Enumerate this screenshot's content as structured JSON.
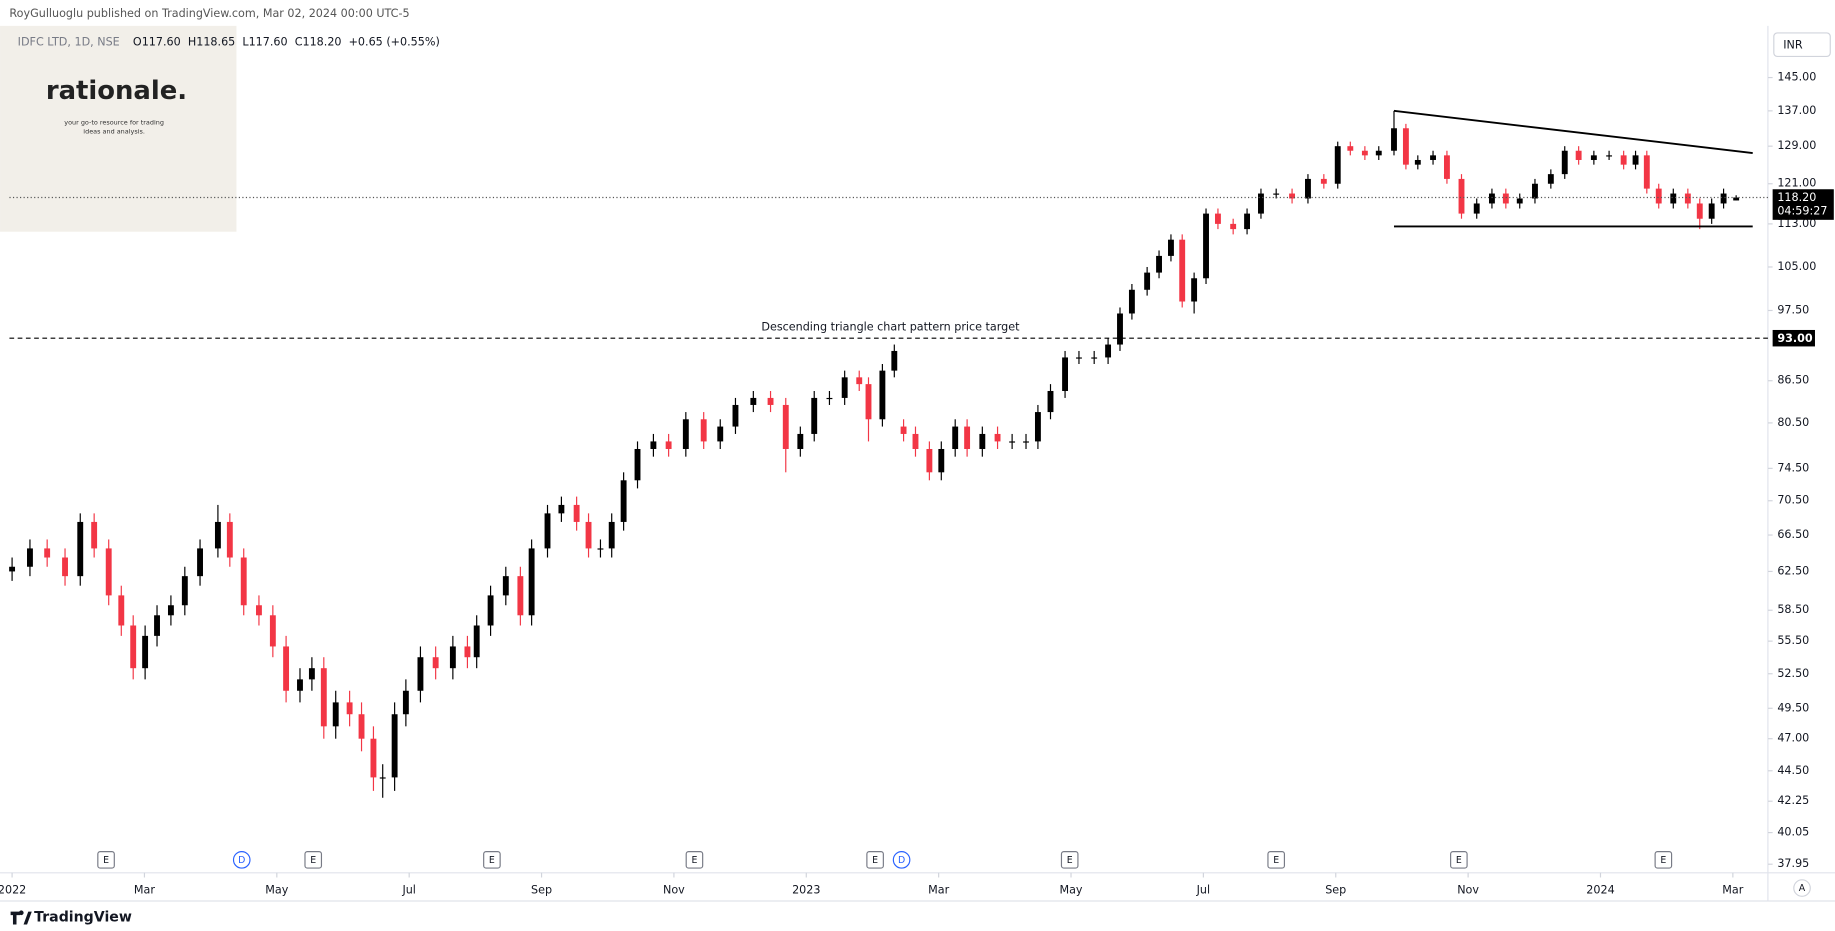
{
  "header": {
    "published": "RoyGulluoglu published on TradingView.com, Mar 02, 2024 00:00 UTC-5",
    "symbol": "IDFC LTD, 1D, NSE",
    "ohlc": [
      "O117.60",
      "H118.65",
      "L117.60",
      "C118.20",
      "+0.65 (+0.55%)"
    ]
  },
  "logo": {
    "name": "rationale.",
    "tagline": [
      "your go-to resource for trading",
      "ideas and analysis."
    ]
  },
  "footer": {
    "brand": "TradingView"
  },
  "currency": "INR",
  "scale_mode": "A",
  "chart_data": {
    "type": "candlestick",
    "log_scale": true,
    "grid": false,
    "up_color": "#000000",
    "down_color": "#f23645",
    "xlim": [
      -0.04,
      26.53
    ],
    "ylim": [
      37.4,
      157.4
    ],
    "xticks": [
      {
        "value": 0,
        "label": "2022"
      },
      {
        "value": 2,
        "label": "Mar"
      },
      {
        "value": 4,
        "label": "May"
      },
      {
        "value": 6,
        "label": "Jul"
      },
      {
        "value": 8,
        "label": "Sep"
      },
      {
        "value": 10,
        "label": "Nov"
      },
      {
        "value": 12,
        "label": "2023"
      },
      {
        "value": 14,
        "label": "Mar"
      },
      {
        "value": 16,
        "label": "May"
      },
      {
        "value": 18,
        "label": "Jul"
      },
      {
        "value": 20,
        "label": "Sep"
      },
      {
        "value": 22,
        "label": "Nov"
      },
      {
        "value": 24,
        "label": "2024"
      },
      {
        "value": 26,
        "label": "Mar"
      }
    ],
    "yticks": [
      {
        "value": 145,
        "label": "145.00"
      },
      {
        "value": 137,
        "label": "137.00"
      },
      {
        "value": 129,
        "label": "129.00"
      },
      {
        "value": 121,
        "label": "121.00"
      },
      {
        "value": 113,
        "label": "113.00"
      },
      {
        "value": 105,
        "label": "105.00"
      },
      {
        "value": 97.5,
        "label": "97.50"
      },
      {
        "value": 86.5,
        "label": "86.50"
      },
      {
        "value": 80.5,
        "label": "80.50"
      },
      {
        "value": 74.5,
        "label": "74.50"
      },
      {
        "value": 70.5,
        "label": "70.50"
      },
      {
        "value": 66.5,
        "label": "66.50"
      },
      {
        "value": 62.5,
        "label": "62.50"
      },
      {
        "value": 58.5,
        "label": "58.50"
      },
      {
        "value": 55.5,
        "label": "55.50"
      },
      {
        "value": 52.5,
        "label": "52.50"
      },
      {
        "value": 49.5,
        "label": "49.50"
      },
      {
        "value": 47,
        "label": "47.00"
      },
      {
        "value": 44.5,
        "label": "44.50"
      },
      {
        "value": 42.25,
        "label": "42.25"
      },
      {
        "value": 40.05,
        "label": "40.05"
      },
      {
        "value": 37.95,
        "label": "37.95"
      }
    ],
    "x": [
      0,
      0.27,
      0.53,
      0.8,
      1.03,
      1.24,
      1.46,
      1.65,
      1.83,
      2.01,
      2.19,
      2.4,
      2.61,
      2.84,
      3.11,
      3.29,
      3.5,
      3.73,
      3.94,
      4.14,
      4.35,
      4.53,
      4.71,
      4.89,
      5.1,
      5.28,
      5.46,
      5.6,
      5.78,
      5.95,
      6.17,
      6.4,
      6.66,
      6.88,
      7.02,
      7.23,
      7.46,
      7.68,
      7.85,
      8.09,
      8.3,
      8.53,
      8.71,
      8.89,
      9.06,
      9.24,
      9.45,
      9.69,
      9.92,
      10.18,
      10.45,
      10.7,
      10.93,
      11.2,
      11.46,
      11.69,
      11.91,
      12.12,
      12.35,
      12.58,
      12.8,
      12.94,
      13.15,
      13.33,
      13.47,
      13.65,
      13.86,
      14.04,
      14.25,
      14.43,
      14.66,
      14.89,
      15.11,
      15.32,
      15.5,
      15.69,
      15.91,
      16.12,
      16.35,
      16.56,
      16.74,
      16.92,
      17.15,
      17.33,
      17.51,
      17.68,
      17.86,
      18.04,
      18.22,
      18.45,
      18.66,
      18.87,
      19.1,
      19.34,
      19.58,
      19.82,
      20.03,
      20.22,
      20.44,
      20.65,
      20.88,
      21.06,
      21.24,
      21.47,
      21.68,
      21.9,
      22.13,
      22.36,
      22.57,
      22.78,
      23.01,
      23.25,
      23.46,
      23.67,
      23.9,
      24.13,
      24.35,
      24.53,
      24.7,
      24.88,
      25.1,
      25.32,
      25.5,
      25.68,
      25.86,
      26.05
    ],
    "open": [
      62.5,
      63,
      65,
      64,
      62,
      68,
      65,
      60,
      57,
      53,
      56,
      58,
      59,
      62,
      65,
      68,
      64,
      59,
      58,
      55,
      51,
      52,
      53,
      48,
      50,
      49,
      47,
      44,
      44,
      49,
      51,
      54,
      53,
      55,
      54,
      57,
      60,
      62,
      58,
      65,
      69,
      70,
      68,
      65,
      65,
      68,
      73,
      77,
      78,
      77,
      81,
      78,
      80,
      83,
      84,
      83,
      77,
      79,
      84,
      84,
      87,
      86,
      81,
      88,
      80,
      79,
      77,
      74,
      77,
      80,
      77,
      79,
      78,
      78,
      78,
      82,
      85,
      90,
      90,
      90,
      92,
      97,
      101,
      104,
      107,
      110,
      99,
      103,
      115,
      113,
      112,
      115,
      119,
      119,
      118,
      122,
      121,
      129,
      128,
      127,
      128,
      133,
      125,
      126,
      127,
      122,
      115,
      117,
      119,
      117,
      118,
      121,
      123,
      128,
      126,
      127,
      127,
      125,
      127,
      120,
      117,
      119,
      117,
      114,
      117,
      117.6
    ],
    "high": [
      64,
      66,
      66,
      65,
      69,
      69,
      66,
      61,
      58,
      57,
      59,
      60,
      63,
      66,
      70,
      69,
      65,
      60,
      59,
      56,
      53,
      54,
      54,
      51,
      51,
      50,
      48,
      45,
      50,
      52,
      55,
      55,
      56,
      56,
      58,
      61,
      63,
      63,
      66,
      70,
      71,
      71,
      69,
      66,
      69,
      74,
      78,
      79,
      79,
      82,
      82,
      81,
      84,
      85,
      85,
      84,
      80,
      85,
      85,
      88,
      88,
      87,
      89,
      92,
      81,
      80,
      78,
      78,
      81,
      81,
      80,
      80,
      79,
      79,
      83,
      86,
      91,
      91,
      91,
      93,
      98,
      102,
      105,
      108,
      111,
      111,
      104,
      116,
      116,
      114,
      116,
      120,
      120,
      120,
      123,
      123,
      130,
      130,
      129,
      129,
      137,
      134,
      127,
      128,
      128,
      123,
      118,
      120,
      120,
      119,
      122,
      124,
      129,
      129,
      128,
      128,
      128,
      128,
      128,
      121,
      120,
      120,
      118,
      118,
      120,
      118.65
    ],
    "low": [
      61.5,
      62,
      63,
      61,
      61,
      64,
      59,
      56,
      52,
      52,
      55,
      57,
      58,
      61,
      64,
      63,
      58,
      57,
      54,
      50,
      50,
      51,
      47,
      47,
      48,
      46,
      43,
      42.5,
      43,
      48,
      50,
      52,
      52,
      53,
      53,
      56,
      59,
      57,
      57,
      64,
      68,
      67,
      64,
      64,
      64,
      67,
      72,
      76,
      76,
      76,
      77,
      77,
      79,
      82,
      82,
      74,
      76,
      78,
      83,
      83,
      85,
      78,
      80,
      87,
      78,
      76,
      73,
      73,
      76,
      76,
      76,
      77,
      77,
      77,
      77,
      81,
      84,
      89,
      89,
      89,
      91,
      96,
      100,
      103,
      106,
      98,
      97,
      102,
      112,
      111,
      111,
      114,
      118,
      117,
      117,
      120,
      120,
      127,
      126,
      126,
      127,
      124,
      124,
      125,
      121,
      114,
      114,
      116,
      116,
      116,
      117,
      120,
      122,
      125,
      125,
      126,
      124,
      124,
      119,
      116,
      116,
      116,
      112,
      113,
      116,
      117.6
    ],
    "close": [
      63,
      65,
      64,
      62,
      68,
      65,
      60,
      57,
      53,
      56,
      58,
      59,
      62,
      65,
      68,
      64,
      59,
      58,
      55,
      51,
      52,
      53,
      48,
      50,
      49,
      47,
      44,
      44,
      49,
      51,
      54,
      53,
      55,
      54,
      57,
      60,
      62,
      58,
      65,
      69,
      70,
      68,
      65,
      65,
      68,
      73,
      77,
      78,
      77,
      81,
      78,
      80,
      83,
      84,
      83,
      77,
      79,
      84,
      84,
      87,
      86,
      81,
      88,
      91,
      79,
      77,
      74,
      77,
      80,
      77,
      79,
      78,
      78,
      78,
      82,
      85,
      90,
      90,
      90,
      92,
      97,
      101,
      104,
      107,
      110,
      99,
      103,
      115,
      113,
      112,
      115,
      119,
      119,
      118,
      122,
      121,
      129,
      128,
      127,
      128,
      133,
      125,
      126,
      127,
      122,
      115,
      117,
      119,
      117,
      118,
      121,
      123,
      128,
      126,
      127,
      127,
      125,
      127,
      120,
      117,
      119,
      117,
      114,
      117,
      119,
      118.2
    ],
    "last_price": {
      "value": 118.2,
      "label": "118.20",
      "countdown": "04:59:27"
    },
    "target": {
      "value": 93,
      "label": "93.00",
      "text": "Descending triangle chart pattern price target"
    },
    "trendlines": [
      {
        "x": [
          20.88,
          26.3
        ],
        "y": [
          137,
          127.5
        ]
      },
      {
        "x": [
          20.88,
          26.3
        ],
        "y": [
          112.5,
          112.5
        ]
      }
    ],
    "events": {
      "labels": [
        "E",
        "D",
        "E",
        "E",
        "E",
        "E",
        "D",
        "E",
        "E",
        "E",
        "E"
      ],
      "x": [
        1.42,
        3.47,
        4.55,
        7.25,
        10.31,
        13.04,
        13.44,
        15.98,
        19.1,
        21.86,
        24.95
      ]
    }
  }
}
